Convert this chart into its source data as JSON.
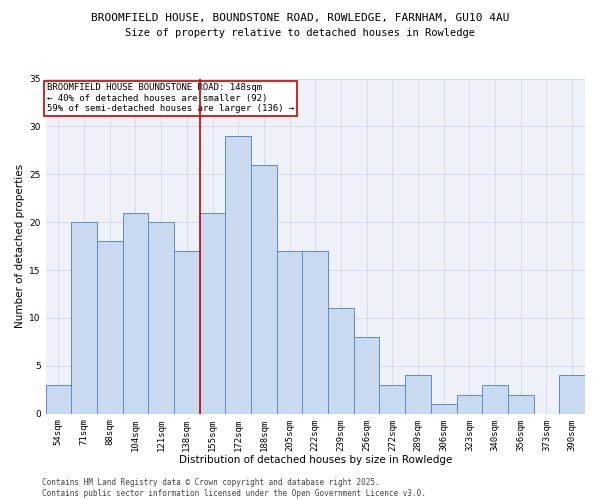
{
  "title_line1": "BROOMFIELD HOUSE, BOUNDSTONE ROAD, ROWLEDGE, FARNHAM, GU10 4AU",
  "title_line2": "Size of property relative to detached houses in Rowledge",
  "xlabel": "Distribution of detached houses by size in Rowledge",
  "ylabel": "Number of detached properties",
  "categories": [
    "54sqm",
    "71sqm",
    "88sqm",
    "104sqm",
    "121sqm",
    "138sqm",
    "155sqm",
    "172sqm",
    "188sqm",
    "205sqm",
    "222sqm",
    "239sqm",
    "256sqm",
    "272sqm",
    "289sqm",
    "306sqm",
    "323sqm",
    "340sqm",
    "356sqm",
    "373sqm",
    "390sqm"
  ],
  "values": [
    3,
    20,
    18,
    21,
    20,
    17,
    21,
    29,
    26,
    17,
    17,
    11,
    8,
    3,
    4,
    1,
    2,
    3,
    2,
    0,
    4
  ],
  "bar_color": "#c9d9f0",
  "bar_edge_color": "#5b8dc8",
  "vline_x": 5.5,
  "vline_color": "#cc0000",
  "annotation_text": "BROOMFIELD HOUSE BOUNDSTONE ROAD: 148sqm\n← 40% of detached houses are smaller (92)\n59% of semi-detached houses are larger (136) →",
  "annotation_box_color": "#ffffff",
  "annotation_box_edge": "#cc0000",
  "ylim": [
    0,
    35
  ],
  "yticks": [
    0,
    5,
    10,
    15,
    20,
    25,
    30,
    35
  ],
  "grid_color": "#d0d8e8",
  "background_color": "#eef2f8",
  "footer_line1": "Contains HM Land Registry data © Crown copyright and database right 2025.",
  "footer_line2": "Contains public sector information licensed under the Open Government Licence v3.0.",
  "title_fontsize": 8.0,
  "title2_fontsize": 7.5,
  "label_fontsize": 7.5,
  "tick_fontsize": 6.5,
  "annotation_fontsize": 6.5,
  "footer_fontsize": 5.5
}
